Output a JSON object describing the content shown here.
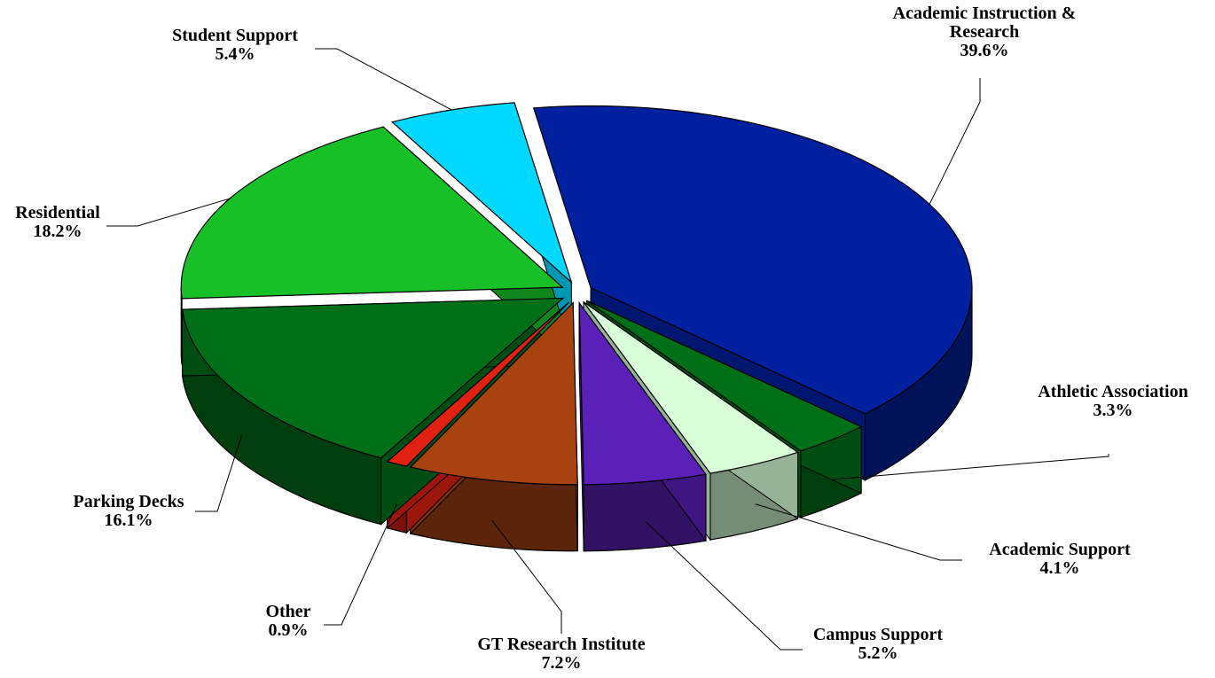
{
  "chart_data": {
    "type": "pie",
    "categories": [
      "Academic Instruction & Research",
      "Athletic Association",
      "Academic Support",
      "Campus Support",
      "GT Research Institute",
      "Other",
      "Parking Decks",
      "Residential",
      "Student Support"
    ],
    "values": [
      39.6,
      3.3,
      4.1,
      5.2,
      7.2,
      0.9,
      16.1,
      18.2,
      5.4
    ],
    "value_labels": [
      "39.6%",
      "3.3%",
      "4.1%",
      "5.2%",
      "7.2%",
      "0.9%",
      "16.1%",
      "18.2%",
      "5.4%"
    ],
    "colors": [
      "#0020a0",
      "#007018",
      "#d8ffd8",
      "#5a20b8",
      "#a84210",
      "#e02010",
      "#007018",
      "#18c028",
      "#00d8ff"
    ]
  }
}
